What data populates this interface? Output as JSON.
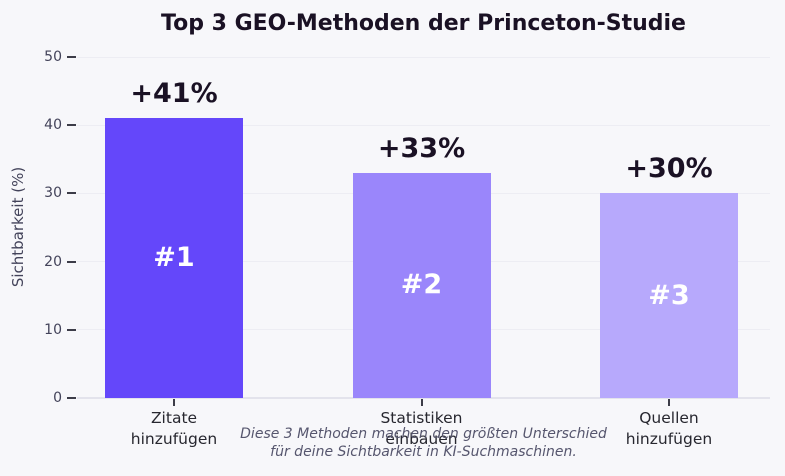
{
  "chart_data": {
    "type": "bar",
    "title": "Top 3 GEO-Methoden der Princeton-Studie",
    "ylabel": "Sichtbarkeit (%)",
    "ylim": [
      0,
      50
    ],
    "yticks": [
      0,
      10,
      20,
      30,
      40,
      50
    ],
    "grid": true,
    "legend": "none",
    "categories": [
      [
        "Zitate",
        "hinzufügen"
      ],
      [
        "Statistiken",
        "einbauen"
      ],
      [
        "Quellen",
        "hinzufügen"
      ]
    ],
    "values": [
      41,
      33,
      30
    ],
    "value_labels": [
      "+41%",
      "+33%",
      "+30%"
    ],
    "rank_labels": [
      "#1",
      "#2",
      "#3"
    ],
    "bar_colors": [
      "#6447fa",
      "#9a86fb",
      "#b7a9fc"
    ],
    "caption": [
      "Diese 3 Methoden machen den größten Unterschied",
      "für deine Sichtbarkeit in KI-Suchmaschinen."
    ]
  },
  "colors": {
    "background": "#f7f7fa",
    "title_text": "#1a1124",
    "axis_text": "#43435a",
    "category_text": "#27272f",
    "caption_text": "#56566e",
    "gridline": "#ededf3",
    "zero_line": "#e3e3ec",
    "tick_mark": "#3c3c48",
    "rank_text": "#ffffff"
  }
}
